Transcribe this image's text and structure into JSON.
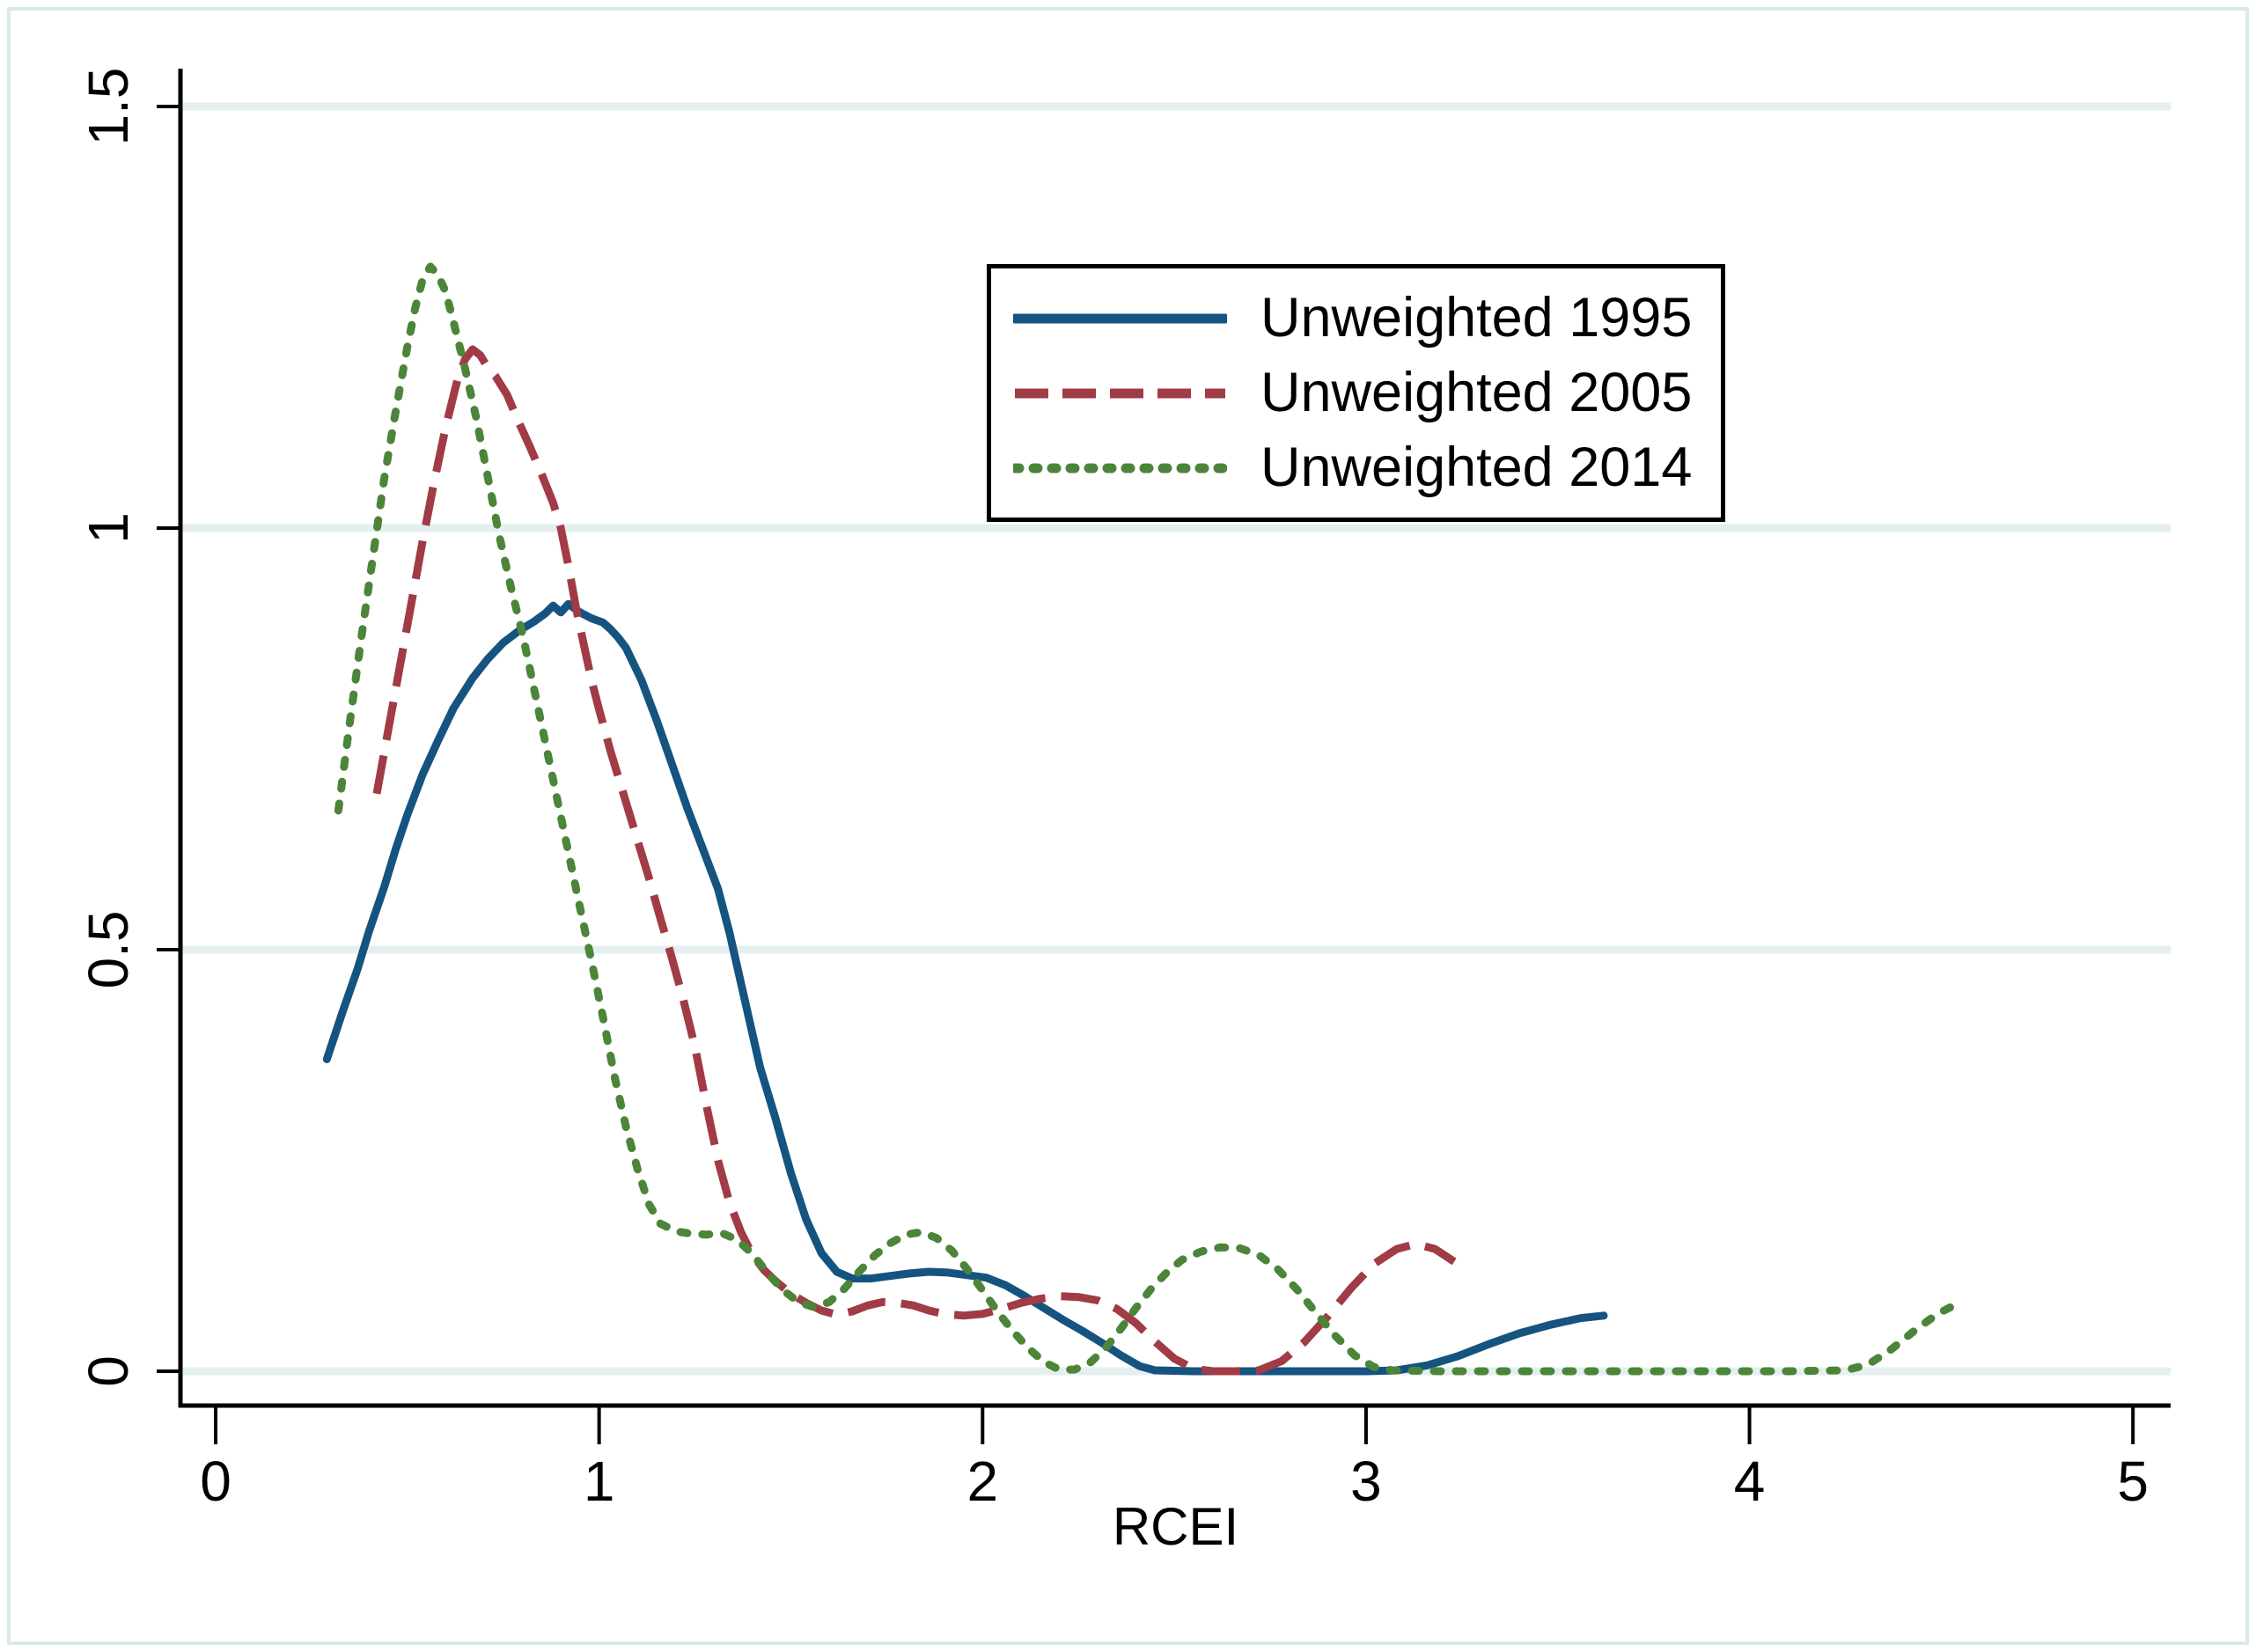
{
  "figure": {
    "background": "#ffffff",
    "frame_color": "#dce9ec"
  },
  "chart_data": {
    "type": "line",
    "title": "",
    "xlabel": "RCEI",
    "ylabel": "",
    "xlim": [
      0,
      5
    ],
    "ylim": [
      0,
      1.5
    ],
    "x_ticks": [
      0,
      1,
      2,
      3,
      4,
      5
    ],
    "y_ticks": [
      0,
      0.5,
      1,
      1.5
    ],
    "x_tick_labels": [
      "0",
      "1",
      "2",
      "3",
      "4",
      "5"
    ],
    "y_tick_labels": [
      "0",
      "0.5",
      "1",
      "1.5"
    ],
    "grid": "horizontal gridlines at y ticks",
    "gridline_color": "#e4efef",
    "axis_color": "#000000",
    "legend_position": "upper center, inside plot",
    "legend_border_color": "#000000",
    "series": [
      {
        "name": "Unweighted 1995",
        "color": "#155380",
        "dash": "solid",
        "points": [
          [
            0.29,
            0.37
          ],
          [
            0.33,
            0.425
          ],
          [
            0.37,
            0.477
          ],
          [
            0.4,
            0.522
          ],
          [
            0.44,
            0.575
          ],
          [
            0.47,
            0.62
          ],
          [
            0.5,
            0.66
          ],
          [
            0.54,
            0.708
          ],
          [
            0.58,
            0.748
          ],
          [
            0.62,
            0.786
          ],
          [
            0.67,
            0.822
          ],
          [
            0.71,
            0.845
          ],
          [
            0.75,
            0.864
          ],
          [
            0.79,
            0.878
          ],
          [
            0.83,
            0.889
          ],
          [
            0.86,
            0.899
          ],
          [
            0.88,
            0.908
          ],
          [
            0.9,
            0.9
          ],
          [
            0.92,
            0.91
          ],
          [
            0.95,
            0.9
          ],
          [
            0.98,
            0.893
          ],
          [
            1.01,
            0.888
          ],
          [
            1.03,
            0.88
          ],
          [
            1.05,
            0.87
          ],
          [
            1.07,
            0.858
          ],
          [
            1.11,
            0.82
          ],
          [
            1.15,
            0.772
          ],
          [
            1.19,
            0.72
          ],
          [
            1.23,
            0.668
          ],
          [
            1.27,
            0.62
          ],
          [
            1.31,
            0.572
          ],
          [
            1.34,
            0.52
          ],
          [
            1.38,
            0.44
          ],
          [
            1.42,
            0.36
          ],
          [
            1.46,
            0.3
          ],
          [
            1.5,
            0.235
          ],
          [
            1.54,
            0.18
          ],
          [
            1.58,
            0.14
          ],
          [
            1.62,
            0.118
          ],
          [
            1.66,
            0.11
          ],
          [
            1.71,
            0.11
          ],
          [
            1.76,
            0.113
          ],
          [
            1.81,
            0.116
          ],
          [
            1.86,
            0.118
          ],
          [
            1.91,
            0.117
          ],
          [
            1.96,
            0.114
          ],
          [
            2.01,
            0.111
          ],
          [
            2.06,
            0.102
          ],
          [
            2.11,
            0.089
          ],
          [
            2.16,
            0.075
          ],
          [
            2.21,
            0.061
          ],
          [
            2.26,
            0.048
          ],
          [
            2.31,
            0.034
          ],
          [
            2.36,
            0.019
          ],
          [
            2.41,
            0.006
          ],
          [
            2.45,
            0.001
          ],
          [
            2.55,
            0
          ],
          [
            2.7,
            0
          ],
          [
            2.85,
            0
          ],
          [
            3.0,
            0
          ],
          [
            3.08,
            0.001
          ],
          [
            3.16,
            0.007
          ],
          [
            3.24,
            0.018
          ],
          [
            3.32,
            0.032
          ],
          [
            3.4,
            0.045
          ],
          [
            3.48,
            0.055
          ],
          [
            3.56,
            0.063
          ],
          [
            3.62,
            0.066
          ]
        ]
      },
      {
        "name": "Unweighted 2005",
        "color": "#a13b46",
        "dash": "dashed",
        "points": [
          [
            0.42,
            0.685
          ],
          [
            0.45,
            0.76
          ],
          [
            0.48,
            0.835
          ],
          [
            0.51,
            0.91
          ],
          [
            0.54,
            0.985
          ],
          [
            0.57,
            1.055
          ],
          [
            0.6,
            1.12
          ],
          [
            0.63,
            1.175
          ],
          [
            0.65,
            1.2
          ],
          [
            0.67,
            1.212
          ],
          [
            0.69,
            1.205
          ],
          [
            0.71,
            1.19
          ],
          [
            0.73,
            1.18
          ],
          [
            0.76,
            1.158
          ],
          [
            0.79,
            1.126
          ],
          [
            0.82,
            1.096
          ],
          [
            0.85,
            1.064
          ],
          [
            0.88,
            1.03
          ],
          [
            0.9,
            1.0
          ],
          [
            0.92,
            0.955
          ],
          [
            0.94,
            0.905
          ],
          [
            0.96,
            0.862
          ],
          [
            0.98,
            0.82
          ],
          [
            1.0,
            0.785
          ],
          [
            1.03,
            0.735
          ],
          [
            1.06,
            0.69
          ],
          [
            1.09,
            0.645
          ],
          [
            1.13,
            0.585
          ],
          [
            1.16,
            0.537
          ],
          [
            1.19,
            0.49
          ],
          [
            1.22,
            0.44
          ],
          [
            1.25,
            0.385
          ],
          [
            1.28,
            0.315
          ],
          [
            1.31,
            0.25
          ],
          [
            1.34,
            0.2
          ],
          [
            1.37,
            0.165
          ],
          [
            1.4,
            0.138
          ],
          [
            1.43,
            0.12
          ],
          [
            1.46,
            0.107
          ],
          [
            1.5,
            0.092
          ],
          [
            1.54,
            0.081
          ],
          [
            1.58,
            0.072
          ],
          [
            1.62,
            0.067
          ],
          [
            1.66,
            0.071
          ],
          [
            1.7,
            0.078
          ],
          [
            1.74,
            0.082
          ],
          [
            1.78,
            0.081
          ],
          [
            1.82,
            0.078
          ],
          [
            1.86,
            0.072
          ],
          [
            1.9,
            0.068
          ],
          [
            1.95,
            0.066
          ],
          [
            2.0,
            0.068
          ],
          [
            2.05,
            0.074
          ],
          [
            2.1,
            0.081
          ],
          [
            2.15,
            0.086
          ],
          [
            2.2,
            0.089
          ],
          [
            2.25,
            0.088
          ],
          [
            2.3,
            0.084
          ],
          [
            2.35,
            0.074
          ],
          [
            2.4,
            0.057
          ],
          [
            2.45,
            0.035
          ],
          [
            2.5,
            0.015
          ],
          [
            2.55,
            0.003
          ],
          [
            2.6,
            0
          ],
          [
            2.66,
            0
          ],
          [
            2.72,
            0.001
          ],
          [
            2.78,
            0.012
          ],
          [
            2.84,
            0.035
          ],
          [
            2.9,
            0.065
          ],
          [
            2.96,
            0.098
          ],
          [
            3.02,
            0.127
          ],
          [
            3.08,
            0.145
          ],
          [
            3.13,
            0.151
          ],
          [
            3.18,
            0.145
          ],
          [
            3.23,
            0.13
          ]
        ]
      },
      {
        "name": "Unweighted 2014",
        "color": "#4c8539",
        "dash": "dotted",
        "points": [
          [
            0.32,
            0.665
          ],
          [
            0.35,
            0.77
          ],
          [
            0.38,
            0.87
          ],
          [
            0.41,
            0.965
          ],
          [
            0.44,
            1.06
          ],
          [
            0.47,
            1.14
          ],
          [
            0.5,
            1.215
          ],
          [
            0.52,
            1.26
          ],
          [
            0.54,
            1.295
          ],
          [
            0.56,
            1.31
          ],
          [
            0.58,
            1.3
          ],
          [
            0.6,
            1.28
          ],
          [
            0.62,
            1.245
          ],
          [
            0.65,
            1.19
          ],
          [
            0.68,
            1.13
          ],
          [
            0.71,
            1.06
          ],
          [
            0.74,
            0.99
          ],
          [
            0.77,
            0.93
          ],
          [
            0.8,
            0.875
          ],
          [
            0.83,
            0.81
          ],
          [
            0.86,
            0.745
          ],
          [
            0.89,
            0.68
          ],
          [
            0.92,
            0.615
          ],
          [
            0.95,
            0.55
          ],
          [
            0.98,
            0.487
          ],
          [
            1.01,
            0.42
          ],
          [
            1.04,
            0.35
          ],
          [
            1.07,
            0.29
          ],
          [
            1.1,
            0.24
          ],
          [
            1.13,
            0.198
          ],
          [
            1.16,
            0.175
          ],
          [
            1.2,
            0.166
          ],
          [
            1.24,
            0.163
          ],
          [
            1.28,
            0.162
          ],
          [
            1.32,
            0.164
          ],
          [
            1.36,
            0.156
          ],
          [
            1.4,
            0.139
          ],
          [
            1.44,
            0.116
          ],
          [
            1.48,
            0.096
          ],
          [
            1.52,
            0.082
          ],
          [
            1.56,
            0.076
          ],
          [
            1.6,
            0.082
          ],
          [
            1.64,
            0.098
          ],
          [
            1.68,
            0.119
          ],
          [
            1.72,
            0.138
          ],
          [
            1.76,
            0.152
          ],
          [
            1.8,
            0.162
          ],
          [
            1.84,
            0.165
          ],
          [
            1.88,
            0.158
          ],
          [
            1.92,
            0.143
          ],
          [
            1.96,
            0.121
          ],
          [
            2.0,
            0.096
          ],
          [
            2.04,
            0.07
          ],
          [
            2.08,
            0.047
          ],
          [
            2.12,
            0.027
          ],
          [
            2.16,
            0.011
          ],
          [
            2.2,
            0.002
          ],
          [
            2.24,
            0.002
          ],
          [
            2.28,
            0.01
          ],
          [
            2.32,
            0.027
          ],
          [
            2.36,
            0.05
          ],
          [
            2.4,
            0.075
          ],
          [
            2.44,
            0.098
          ],
          [
            2.48,
            0.117
          ],
          [
            2.52,
            0.132
          ],
          [
            2.57,
            0.142
          ],
          [
            2.62,
            0.147
          ],
          [
            2.67,
            0.146
          ],
          [
            2.72,
            0.138
          ],
          [
            2.77,
            0.121
          ],
          [
            2.82,
            0.097
          ],
          [
            2.87,
            0.069
          ],
          [
            2.92,
            0.042
          ],
          [
            2.97,
            0.019
          ],
          [
            3.02,
            0.005
          ],
          [
            3.07,
            0.001
          ],
          [
            3.2,
            0
          ],
          [
            3.5,
            0
          ],
          [
            3.8,
            0
          ],
          [
            4.1,
            0
          ],
          [
            4.25,
            0.001
          ],
          [
            4.31,
            0.008
          ],
          [
            4.37,
            0.026
          ],
          [
            4.43,
            0.048
          ],
          [
            4.49,
            0.068
          ],
          [
            4.55,
            0.082
          ]
        ]
      }
    ]
  }
}
